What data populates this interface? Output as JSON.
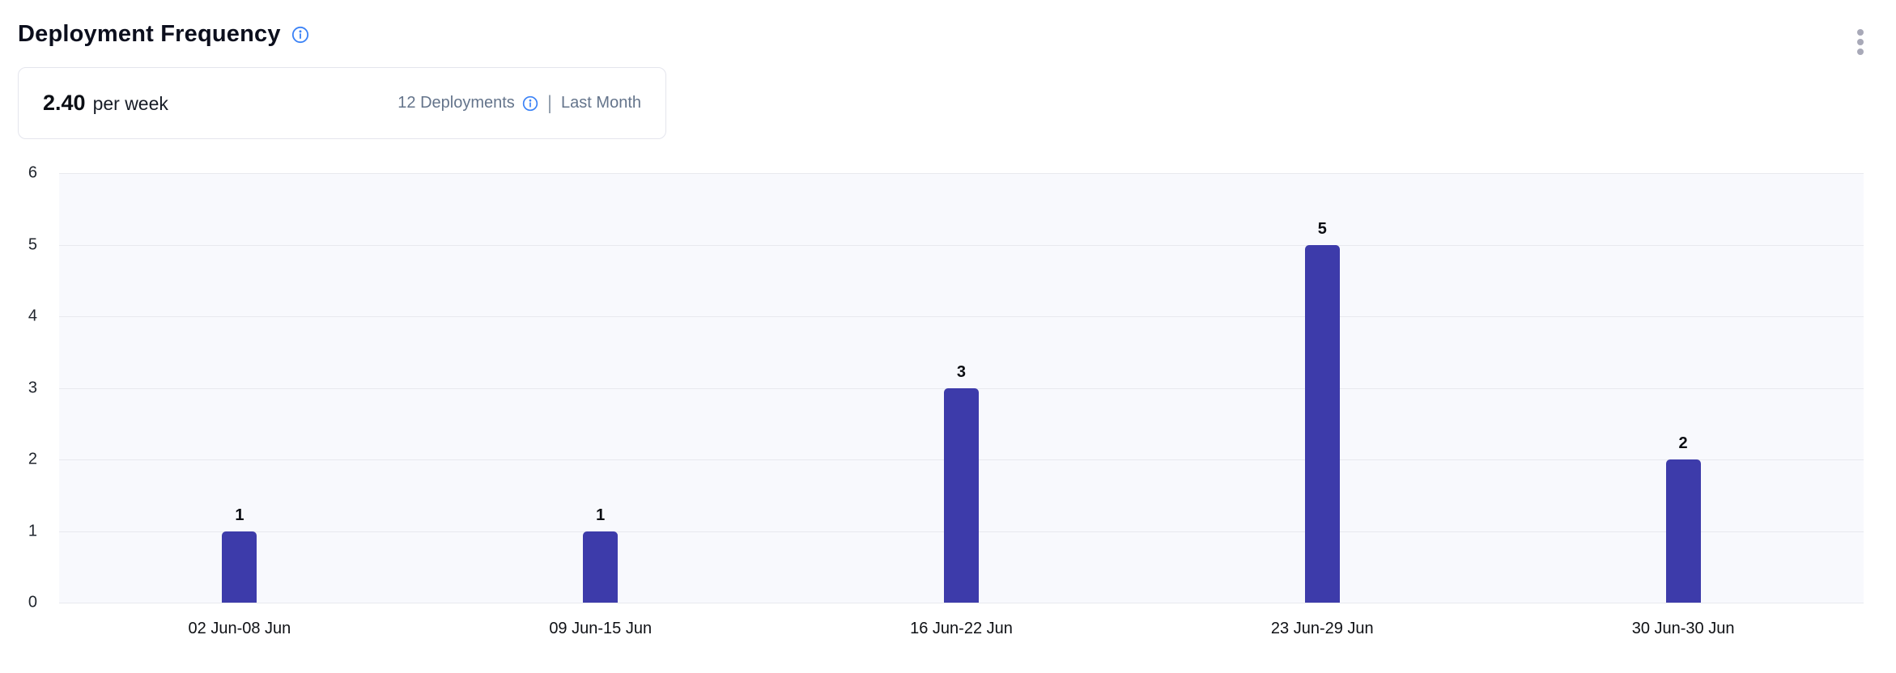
{
  "widget": {
    "title": "Deployment Frequency"
  },
  "summary": {
    "rate_value": "2.40",
    "rate_unit": "per week",
    "deployments_label": "12 Deployments",
    "separator": "|",
    "period_label": "Last Month"
  },
  "chart_data": {
    "type": "bar",
    "title": "Deployment Frequency",
    "categories": [
      "02 Jun-08 Jun",
      "09 Jun-15 Jun",
      "16 Jun-22 Jun",
      "23 Jun-29 Jun",
      "30 Jun-30 Jun"
    ],
    "values": [
      1,
      1,
      3,
      5,
      2
    ],
    "xlabel": "",
    "ylabel": "",
    "ylim": [
      0,
      6
    ],
    "yticks": [
      0,
      1,
      2,
      3,
      4,
      5,
      6
    ],
    "grid": true,
    "legend": "none",
    "value_labels_shown": true
  },
  "colors": {
    "bar_indigo": "#3d3baa",
    "accent_blue": "#3b82f6",
    "secondary_text": "#64748b",
    "card_border": "#e4e5ed",
    "gridline": "#e8e9ee",
    "plot_background": "#f8f9fd",
    "kebab_gray": "#a8a9b8"
  }
}
